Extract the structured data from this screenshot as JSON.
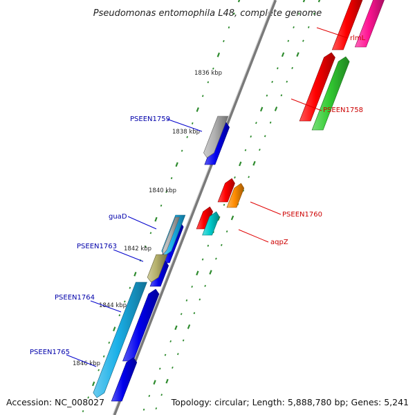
{
  "title": "Pseudomonas entomophila L48, complete genome",
  "footer": {
    "accession": "Accession: NC_008027",
    "info": "Topology: circular; Length: 5,888,780 bp; Genes: 5,241"
  },
  "ruler_labels": [
    "1836 kbp",
    "1838 kbp",
    "1840 kbp",
    "1842 kbp",
    "1844 kbp",
    "1846 kbp"
  ],
  "forward_gene_labels": [
    "rlmL",
    "PSEEN1758",
    "PSEEN1760",
    "aqpZ"
  ],
  "reverse_gene_labels": [
    "PSEEN1759",
    "guaD",
    "PSEEN1763",
    "PSEEN1764",
    "PSEEN1765"
  ],
  "colors": {
    "forward_label": "#cc0000",
    "reverse_label": "#0000aa",
    "tick": "#2e8b2e",
    "backbone": "#808080",
    "red": "#ff0000",
    "magenta": "#ff1493",
    "green": "#33cc33",
    "orange": "#ff8c00",
    "cyan": "#00cccc",
    "sky": "#1ab0e8",
    "blue": "#0000ee",
    "gray": "#b0b0b0",
    "olive": "#b5b06a"
  }
}
